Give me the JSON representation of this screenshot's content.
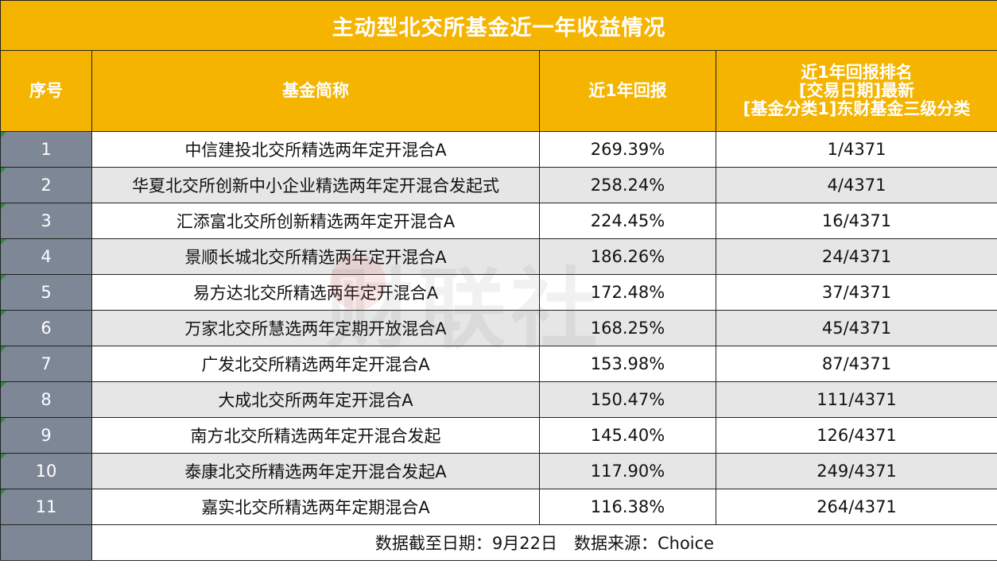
{
  "title": "主动型北交所基金近一年收益情况",
  "headers": {
    "index": "序号",
    "name": "基金简称",
    "return": "近1年回报",
    "rank_line1": "近1年回报排名",
    "rank_line2": "[交易日期]最新",
    "rank_line3": "[基金分类1]东财基金三级分类"
  },
  "rows": [
    {
      "index": "1",
      "name": "中信建投北交所精选两年定开混合A",
      "return": "269.39%",
      "rank": "1/4371"
    },
    {
      "index": "2",
      "name": "华夏北交所创新中小企业精选两年定开混合发起式",
      "return": "258.24%",
      "rank": "4/4371"
    },
    {
      "index": "3",
      "name": "汇添富北交所创新精选两年定开混合A",
      "return": "224.45%",
      "rank": "16/4371"
    },
    {
      "index": "4",
      "name": "景顺长城北交所精选两年定开混合A",
      "return": "186.26%",
      "rank": "24/4371"
    },
    {
      "index": "5",
      "name": "易方达北交所精选两年定开混合A",
      "return": "172.48%",
      "rank": "37/4371"
    },
    {
      "index": "6",
      "name": "万家北交所慧选两年定期开放混合A",
      "return": "168.25%",
      "rank": "45/4371"
    },
    {
      "index": "7",
      "name": "广发北交所精选两年定开混合A",
      "return": "153.98%",
      "rank": "87/4371"
    },
    {
      "index": "8",
      "name": "大成北交所两年定开混合A",
      "return": "150.47%",
      "rank": "111/4371"
    },
    {
      "index": "9",
      "name": "南方北交所精选两年定开混合发起",
      "return": "145.40%",
      "rank": "126/4371"
    },
    {
      "index": "10",
      "name": "泰康北交所精选两年定开混合发起A",
      "return": "117.90%",
      "rank": "249/4371"
    },
    {
      "index": "11",
      "name": "嘉实北交所精选两年定期混合A",
      "return": "116.38%",
      "rank": "264/4371"
    }
  ],
  "footer": "数据截至日期：9月22日　数据来源：Choice",
  "watermark": "财联社",
  "colors": {
    "header_bg": "#f5b400",
    "index_bg": "#7e8796",
    "stripe": "#e6e6e6"
  }
}
